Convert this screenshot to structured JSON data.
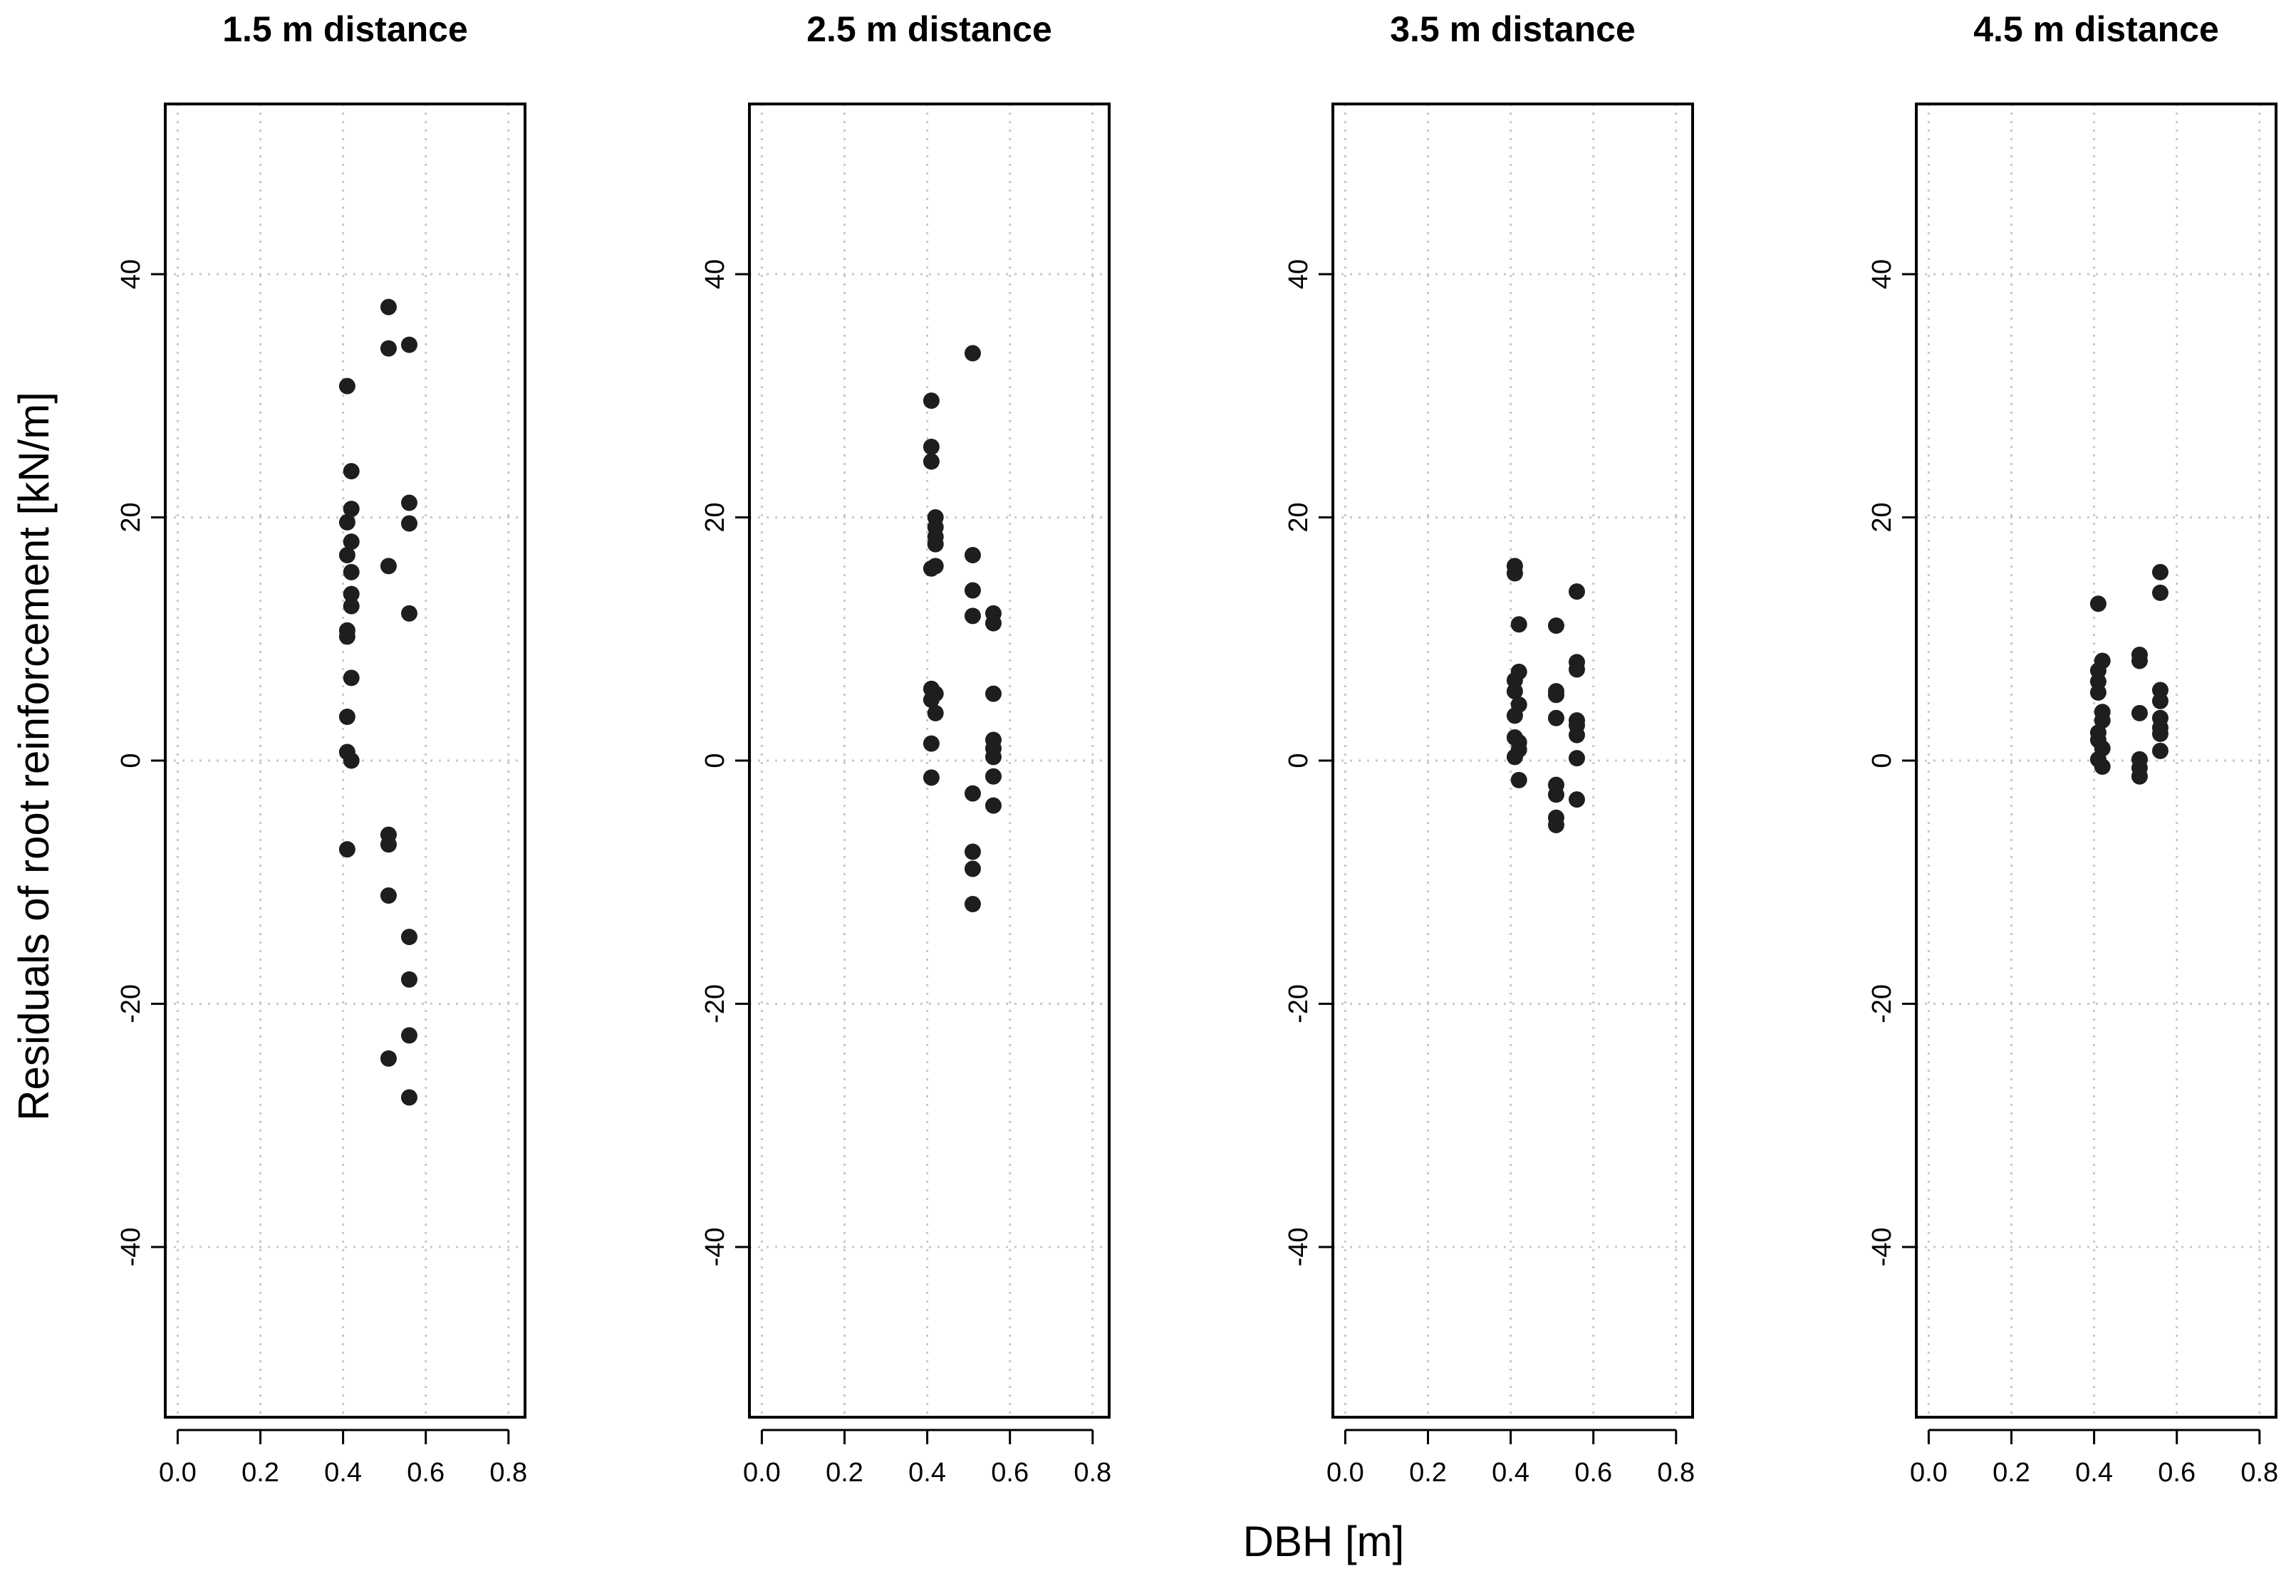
{
  "figure": {
    "xlabel": "DBH [m]",
    "ylabel": "Residuals of root reinforcement [kN/m]"
  },
  "chart_data": [
    {
      "type": "scatter",
      "title": "1.5 m distance",
      "xlabel": "DBH [m]",
      "ylabel": "Residuals of root reinforcement [kN/m]",
      "xlim": [
        -0.03,
        0.84
      ],
      "ylim": [
        -54,
        54
      ],
      "xticks": [
        "0.0",
        "0.2",
        "0.4",
        "0.6",
        "0.8"
      ],
      "yticks": [
        "-40",
        "-20",
        "0",
        "20",
        "40"
      ],
      "grid": true,
      "points": [
        [
          0.41,
          30.8
        ],
        [
          0.42,
          23.8
        ],
        [
          0.42,
          20.7
        ],
        [
          0.41,
          19.6
        ],
        [
          0.42,
          18.0
        ],
        [
          0.41,
          16.9
        ],
        [
          0.42,
          15.5
        ],
        [
          0.42,
          13.7
        ],
        [
          0.42,
          12.7
        ],
        [
          0.41,
          10.7
        ],
        [
          0.41,
          10.2
        ],
        [
          0.42,
          6.8
        ],
        [
          0.41,
          3.6
        ],
        [
          0.41,
          0.7
        ],
        [
          0.42,
          0.0
        ],
        [
          0.41,
          -7.3
        ],
        [
          0.51,
          37.3
        ],
        [
          0.51,
          33.9
        ],
        [
          0.51,
          16.0
        ],
        [
          0.51,
          -6.1
        ],
        [
          0.51,
          -6.9
        ],
        [
          0.51,
          -11.1
        ],
        [
          0.51,
          -24.5
        ],
        [
          0.56,
          34.2
        ],
        [
          0.56,
          21.2
        ],
        [
          0.56,
          19.5
        ],
        [
          0.56,
          12.1
        ],
        [
          0.56,
          -14.5
        ],
        [
          0.56,
          -18.0
        ],
        [
          0.56,
          -22.6
        ],
        [
          0.56,
          -27.7
        ]
      ]
    },
    {
      "type": "scatter",
      "title": "2.5 m distance",
      "xlabel": "DBH [m]",
      "ylabel": "Residuals of root reinforcement [kN/m]",
      "xlim": [
        -0.03,
        0.84
      ],
      "ylim": [
        -54,
        54
      ],
      "xticks": [
        "0.0",
        "0.2",
        "0.4",
        "0.6",
        "0.8"
      ],
      "yticks": [
        "-40",
        "-20",
        "0",
        "20",
        "40"
      ],
      "grid": true,
      "points": [
        [
          0.41,
          29.6
        ],
        [
          0.41,
          25.8
        ],
        [
          0.41,
          24.6
        ],
        [
          0.42,
          20.0
        ],
        [
          0.42,
          19.2
        ],
        [
          0.42,
          18.4
        ],
        [
          0.42,
          17.8
        ],
        [
          0.42,
          16.0
        ],
        [
          0.41,
          15.8
        ],
        [
          0.41,
          5.9
        ],
        [
          0.42,
          5.5
        ],
        [
          0.41,
          5.0
        ],
        [
          0.42,
          3.9
        ],
        [
          0.41,
          1.4
        ],
        [
          0.41,
          -1.4
        ],
        [
          0.51,
          33.5
        ],
        [
          0.51,
          16.9
        ],
        [
          0.51,
          14.0
        ],
        [
          0.51,
          11.9
        ],
        [
          0.51,
          -2.7
        ],
        [
          0.51,
          -7.5
        ],
        [
          0.51,
          -8.9
        ],
        [
          0.51,
          -11.8
        ],
        [
          0.56,
          12.1
        ],
        [
          0.56,
          11.3
        ],
        [
          0.56,
          5.5
        ],
        [
          0.56,
          1.7
        ],
        [
          0.56,
          1.0
        ],
        [
          0.56,
          0.3
        ],
        [
          0.56,
          -1.3
        ],
        [
          0.56,
          -3.7
        ]
      ]
    },
    {
      "type": "scatter",
      "title": "3.5 m distance",
      "xlabel": "DBH [m]",
      "ylabel": "Residuals of root reinforcement [kN/m]",
      "xlim": [
        -0.03,
        0.84
      ],
      "ylim": [
        -54,
        54
      ],
      "xticks": [
        "0.0",
        "0.2",
        "0.4",
        "0.6",
        "0.8"
      ],
      "yticks": [
        "-40",
        "-20",
        "0",
        "20",
        "40"
      ],
      "grid": true,
      "points": [
        [
          0.41,
          16.0
        ],
        [
          0.41,
          15.4
        ],
        [
          0.42,
          11.2
        ],
        [
          0.42,
          7.3
        ],
        [
          0.41,
          6.6
        ],
        [
          0.41,
          5.7
        ],
        [
          0.42,
          4.6
        ],
        [
          0.41,
          3.7
        ],
        [
          0.41,
          1.9
        ],
        [
          0.42,
          1.5
        ],
        [
          0.42,
          0.9
        ],
        [
          0.41,
          0.3
        ],
        [
          0.42,
          -1.6
        ],
        [
          0.51,
          11.1
        ],
        [
          0.51,
          5.7
        ],
        [
          0.51,
          5.4
        ],
        [
          0.51,
          3.5
        ],
        [
          0.51,
          -2.0
        ],
        [
          0.51,
          -2.8
        ],
        [
          0.51,
          -4.7
        ],
        [
          0.51,
          -5.3
        ],
        [
          0.56,
          13.9
        ],
        [
          0.56,
          8.1
        ],
        [
          0.56,
          7.5
        ],
        [
          0.56,
          3.3
        ],
        [
          0.56,
          2.9
        ],
        [
          0.56,
          2.1
        ],
        [
          0.56,
          0.2
        ],
        [
          0.56,
          -3.2
        ]
      ]
    },
    {
      "type": "scatter",
      "title": "4.5 m distance",
      "xlabel": "DBH [m]",
      "ylabel": "Residuals of root reinforcement [kN/m]",
      "xlim": [
        -0.03,
        0.84
      ],
      "ylim": [
        -54,
        54
      ],
      "xticks": [
        "0.0",
        "0.2",
        "0.4",
        "0.6",
        "0.8"
      ],
      "yticks": [
        "-40",
        "-20",
        "0",
        "20",
        "40"
      ],
      "grid": true,
      "points": [
        [
          0.41,
          12.9
        ],
        [
          0.42,
          8.2
        ],
        [
          0.41,
          7.4
        ],
        [
          0.41,
          6.5
        ],
        [
          0.41,
          5.6
        ],
        [
          0.42,
          4.0
        ],
        [
          0.42,
          3.3
        ],
        [
          0.41,
          2.3
        ],
        [
          0.41,
          1.7
        ],
        [
          0.42,
          1.0
        ],
        [
          0.41,
          0.1
        ],
        [
          0.42,
          -0.5
        ],
        [
          0.51,
          8.7
        ],
        [
          0.51,
          8.2
        ],
        [
          0.51,
          3.9
        ],
        [
          0.51,
          0.1
        ],
        [
          0.51,
          -0.6
        ],
        [
          0.51,
          -1.3
        ],
        [
          0.56,
          15.5
        ],
        [
          0.56,
          13.8
        ],
        [
          0.56,
          5.8
        ],
        [
          0.56,
          4.9
        ],
        [
          0.56,
          3.5
        ],
        [
          0.56,
          2.7
        ],
        [
          0.56,
          2.2
        ],
        [
          0.56,
          0.8
        ]
      ]
    }
  ]
}
